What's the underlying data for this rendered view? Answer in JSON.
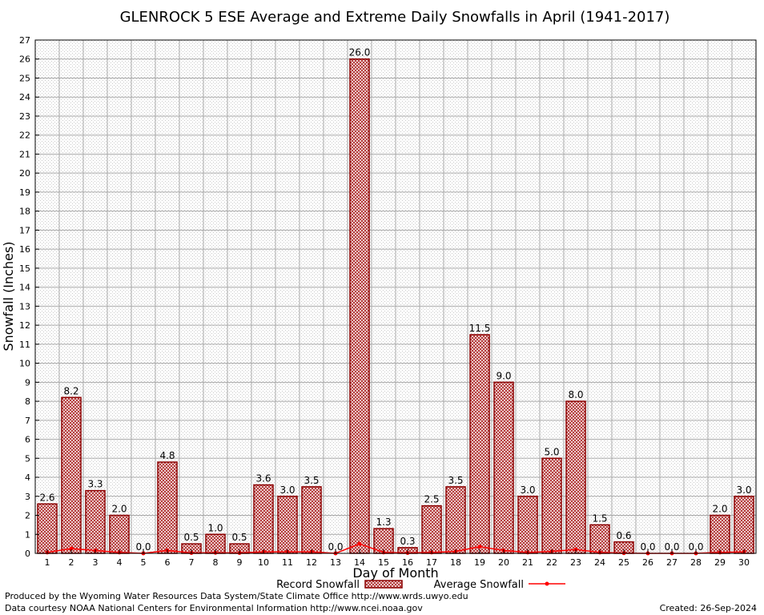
{
  "chart_data": {
    "type": "bar",
    "title": "GLENROCK 5 ESE Average and Extreme Daily Snowfalls in April (1941-2017)",
    "xlabel": "Day of Month",
    "ylabel": "Snowfall (Inches)",
    "ylim": [
      0,
      27
    ],
    "yticks": [
      0,
      1,
      2,
      3,
      4,
      5,
      6,
      7,
      8,
      9,
      10,
      11,
      12,
      13,
      14,
      15,
      16,
      17,
      18,
      19,
      20,
      21,
      22,
      23,
      24,
      25,
      26,
      27
    ],
    "categories": [
      "1",
      "2",
      "3",
      "4",
      "5",
      "6",
      "7",
      "8",
      "9",
      "10",
      "11",
      "12",
      "13",
      "14",
      "15",
      "16",
      "17",
      "18",
      "19",
      "20",
      "21",
      "22",
      "23",
      "24",
      "25",
      "26",
      "27",
      "28",
      "29",
      "30"
    ],
    "grid": true,
    "legend_position": "bottom",
    "series": [
      {
        "name": "Record Snowfall",
        "kind": "bar",
        "color": "#8b0000",
        "values": [
          2.6,
          8.2,
          3.3,
          2.0,
          0.0,
          4.8,
          0.5,
          1.0,
          0.5,
          3.6,
          3.0,
          3.5,
          0.0,
          26.0,
          1.3,
          0.3,
          2.5,
          3.5,
          11.5,
          9.0,
          3.0,
          5.0,
          8.0,
          1.5,
          0.6,
          0.0,
          0.0,
          0.0,
          2.0,
          3.0
        ],
        "labels": [
          "2.6",
          "8.2",
          "3.3",
          "2.0",
          "0.0",
          "4.8",
          "0.5",
          "1.0",
          "0.5",
          "3.6",
          "3.0",
          "3.5",
          "0.0",
          "26.0",
          "1.3",
          "0.3",
          "2.5",
          "3.5",
          "11.5",
          "9.0",
          "3.0",
          "5.0",
          "8.0",
          "1.5",
          "0.6",
          "0.0",
          "0.0",
          "0.0",
          "2.0",
          "3.0"
        ]
      },
      {
        "name": "Average Snowfall",
        "kind": "line",
        "color": "#ff0000",
        "values": [
          0.05,
          0.25,
          0.15,
          0.05,
          0.0,
          0.15,
          0.02,
          0.03,
          0.02,
          0.08,
          0.08,
          0.08,
          0.0,
          0.5,
          0.05,
          0.02,
          0.05,
          0.1,
          0.35,
          0.15,
          0.05,
          0.1,
          0.2,
          0.05,
          0.01,
          0.0,
          0.0,
          0.0,
          0.05,
          0.08
        ]
      }
    ]
  },
  "footer": {
    "line1": "Produced by the Wyoming Water Resources Data System/State Climate Office http://www.wrds.uwyo.edu",
    "line2": "Data courtesy NOAA National Centers for Environmental Information http://www.ncei.noaa.gov",
    "created": "Created:  26-Sep-2024"
  }
}
